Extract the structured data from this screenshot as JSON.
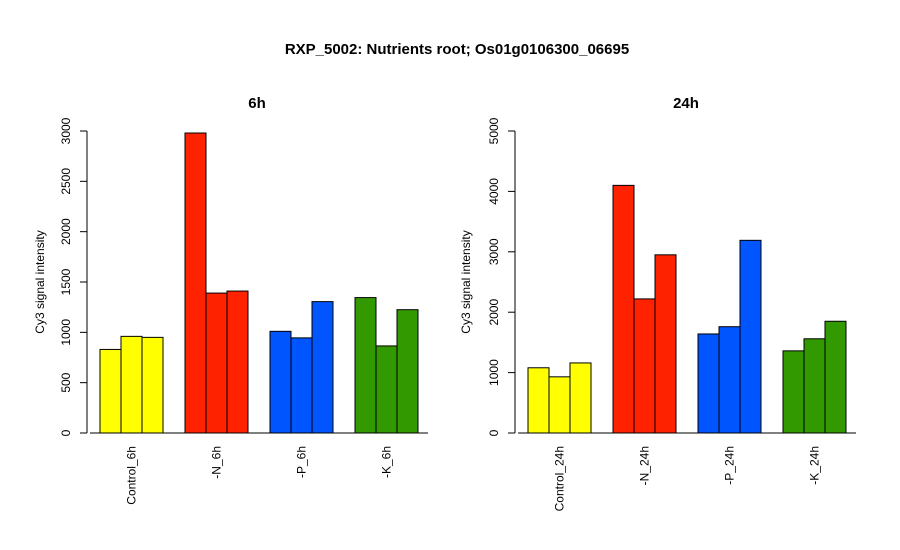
{
  "title": "RXP_5002: Nutrients root; Os01g0106300_06695",
  "colors": {
    "control": "#ffff00",
    "n": "#ff2200",
    "p": "#0055ff",
    "k": "#339900"
  },
  "chart_data": [
    {
      "type": "bar",
      "title": "6h",
      "ylabel": "Cy3 signal intensity",
      "ylim": [
        0,
        3000
      ],
      "yticks": [
        0,
        500,
        1000,
        1500,
        2000,
        2500,
        3000
      ],
      "ytick_labels": [
        "0",
        "500",
        "1000",
        "1500",
        "2000",
        "2500",
        "3000"
      ],
      "categories": [
        "Control_6h",
        "-N_6h",
        "-P_6h",
        "-K_6h"
      ],
      "groups": [
        {
          "label": "Control_6h",
          "color": "#ffff00",
          "values": [
            830,
            960,
            950
          ]
        },
        {
          "label": "-N_6h",
          "color": "#ff2200",
          "values": [
            2980,
            1390,
            1410
          ]
        },
        {
          "label": "-P_6h",
          "color": "#0055ff",
          "values": [
            1010,
            945,
            1305
          ]
        },
        {
          "label": "-K_6h",
          "color": "#339900",
          "values": [
            1345,
            865,
            1225
          ]
        }
      ]
    },
    {
      "type": "bar",
      "title": "24h",
      "ylabel": "Cy3 signal intensity",
      "ylim": [
        0,
        5000
      ],
      "yticks": [
        0,
        1000,
        2000,
        3000,
        4000,
        5000
      ],
      "ytick_labels": [
        "0",
        "1000",
        "2000",
        "3000",
        "4000",
        "5000"
      ],
      "categories": [
        "Control_24h",
        "-N_24h",
        "-P_24h",
        "-K_24h"
      ],
      "groups": [
        {
          "label": "Control_24h",
          "color": "#ffff00",
          "values": [
            1080,
            930,
            1160
          ]
        },
        {
          "label": "-N_24h",
          "color": "#ff2200",
          "values": [
            4100,
            2220,
            2950
          ]
        },
        {
          "label": "-P_24h",
          "color": "#0055ff",
          "values": [
            1640,
            1760,
            3190
          ]
        },
        {
          "label": "-K_24h",
          "color": "#339900",
          "values": [
            1360,
            1560,
            1850
          ]
        }
      ]
    }
  ]
}
